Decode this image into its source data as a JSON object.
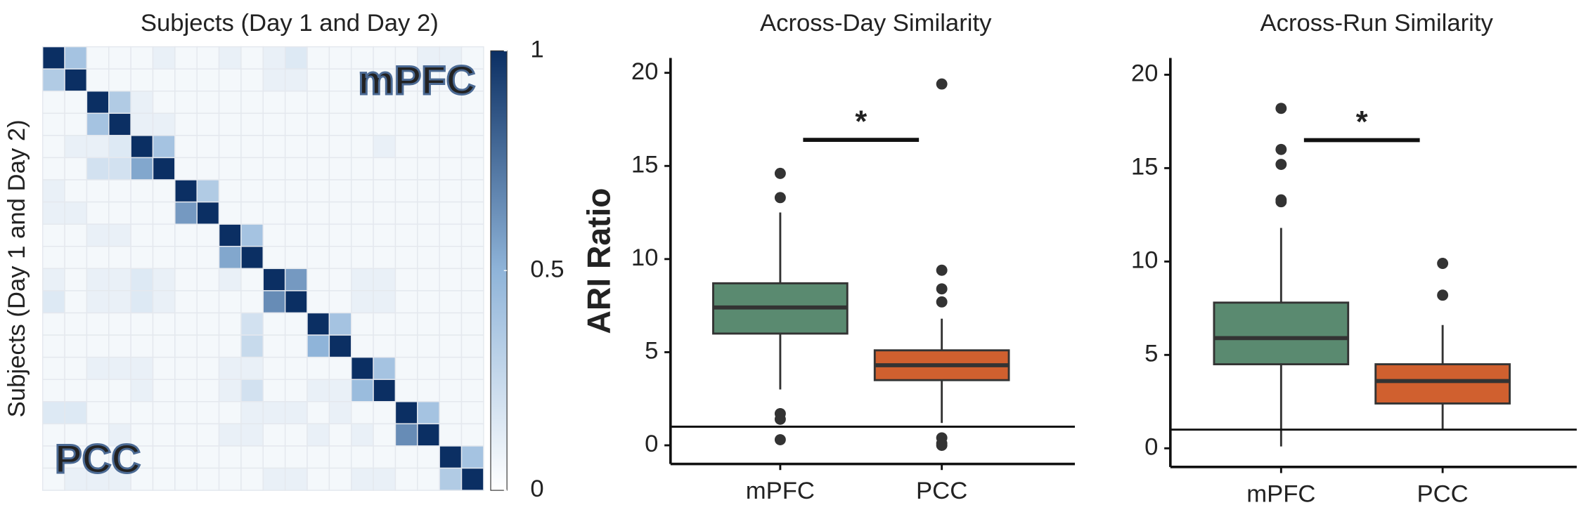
{
  "chart_data": [
    {
      "type": "heatmap",
      "title": "Subjects (Day 1 and Day 2)",
      "ylabel": "Subjects (Day 1 and Day 2)",
      "annotations": [
        "mPFC",
        "PCC"
      ],
      "zlim": [
        0,
        1
      ],
      "zticks": [
        0,
        0.5,
        1
      ],
      "colors": [
        "#ffffff",
        "#8fb4d9",
        "#0b2f63"
      ],
      "values": [
        [
          1,
          0.4,
          0.05,
          0.05,
          0.05,
          0.1,
          0.05,
          0.05,
          0.1,
          0.05,
          0.1,
          0.15,
          0.05,
          0.05,
          0.05,
          0.05,
          0.05,
          0.1,
          0.1,
          0.05
        ],
        [
          0.35,
          1,
          0.05,
          0.05,
          0.05,
          0.05,
          0.05,
          0.05,
          0.05,
          0.05,
          0.1,
          0.1,
          0.05,
          0.05,
          0.05,
          0.05,
          0.05,
          0.05,
          0.05,
          0.05
        ],
        [
          0.05,
          0.05,
          1,
          0.35,
          0.1,
          0.05,
          0.05,
          0.05,
          0.05,
          0.05,
          0.05,
          0.05,
          0.05,
          0.05,
          0.05,
          0.05,
          0.05,
          0.05,
          0.05,
          0.05
        ],
        [
          0.05,
          0.05,
          0.4,
          1,
          0.1,
          0.1,
          0.05,
          0.05,
          0.05,
          0.05,
          0.05,
          0.05,
          0.05,
          0.05,
          0.05,
          0.05,
          0.05,
          0.05,
          0.05,
          0.05
        ],
        [
          0.05,
          0.1,
          0.1,
          0.15,
          1,
          0.4,
          0.05,
          0.05,
          0.05,
          0.05,
          0.05,
          0.05,
          0.05,
          0.05,
          0.05,
          0.1,
          0.05,
          0.05,
          0.05,
          0.05
        ],
        [
          0.05,
          0.05,
          0.2,
          0.2,
          0.55,
          1,
          0.05,
          0.05,
          0.05,
          0.05,
          0.05,
          0.05,
          0.05,
          0.05,
          0.05,
          0.05,
          0.05,
          0.05,
          0.05,
          0.05
        ],
        [
          0.1,
          0.05,
          0.05,
          0.05,
          0.05,
          0.05,
          1,
          0.35,
          0.05,
          0.05,
          0.05,
          0.05,
          0.05,
          0.05,
          0.05,
          0.05,
          0.05,
          0.05,
          0.05,
          0.05
        ],
        [
          0.1,
          0.1,
          0.05,
          0.05,
          0.05,
          0.05,
          0.6,
          1,
          0.05,
          0.05,
          0.05,
          0.05,
          0.05,
          0.05,
          0.05,
          0.05,
          0.05,
          0.05,
          0.05,
          0.05
        ],
        [
          0.05,
          0.05,
          0.1,
          0.1,
          0.05,
          0.05,
          0.05,
          0.05,
          1,
          0.4,
          0.05,
          0.05,
          0.05,
          0.05,
          0.05,
          0.05,
          0.05,
          0.05,
          0.05,
          0.05
        ],
        [
          0.05,
          0.05,
          0.05,
          0.05,
          0.05,
          0.05,
          0.05,
          0.05,
          0.55,
          1,
          0.05,
          0.05,
          0.05,
          0.05,
          0.05,
          0.05,
          0.05,
          0.05,
          0.05,
          0.05
        ],
        [
          0.1,
          0.05,
          0.1,
          0.1,
          0.15,
          0.1,
          0.05,
          0.05,
          0.1,
          0.05,
          1,
          0.6,
          0.05,
          0.05,
          0.1,
          0.1,
          0.05,
          0.05,
          0.05,
          0.05
        ],
        [
          0.15,
          0.05,
          0.1,
          0.1,
          0.15,
          0.1,
          0.05,
          0.05,
          0.05,
          0.05,
          0.65,
          1,
          0.05,
          0.05,
          0.1,
          0.1,
          0.05,
          0.05,
          0.05,
          0.05
        ],
        [
          0.05,
          0.05,
          0.05,
          0.05,
          0.05,
          0.05,
          0.05,
          0.05,
          0.05,
          0.2,
          0.05,
          0.05,
          1,
          0.4,
          0.05,
          0.05,
          0.05,
          0.05,
          0.05,
          0.05
        ],
        [
          0.05,
          0.05,
          0.05,
          0.05,
          0.05,
          0.05,
          0.05,
          0.05,
          0.05,
          0.25,
          0.05,
          0.05,
          0.5,
          1,
          0.05,
          0.05,
          0.05,
          0.05,
          0.05,
          0.05
        ],
        [
          0.05,
          0.05,
          0.1,
          0.1,
          0.1,
          0.05,
          0.05,
          0.05,
          0.1,
          0.1,
          0.05,
          0.05,
          0.05,
          0.05,
          1,
          0.4,
          0.05,
          0.05,
          0.05,
          0.05
        ],
        [
          0.05,
          0.05,
          0.05,
          0.05,
          0.1,
          0.05,
          0.05,
          0.05,
          0.1,
          0.2,
          0.05,
          0.05,
          0.1,
          0.1,
          0.45,
          1,
          0.05,
          0.05,
          0.05,
          0.05
        ],
        [
          0.15,
          0.15,
          0.05,
          0.05,
          0.05,
          0.05,
          0.05,
          0.05,
          0.05,
          0.1,
          0.1,
          0.1,
          0.05,
          0.1,
          0.05,
          0.05,
          1,
          0.4,
          0.05,
          0.05
        ],
        [
          0.05,
          0.05,
          0.05,
          0.1,
          0.05,
          0.05,
          0.05,
          0.05,
          0.1,
          0.1,
          0.05,
          0.05,
          0.1,
          0.05,
          0.1,
          0.05,
          0.65,
          1,
          0.05,
          0.05
        ],
        [
          0.05,
          0.05,
          0.05,
          0.05,
          0.05,
          0.05,
          0.05,
          0.05,
          0.05,
          0.05,
          0.05,
          0.05,
          0.05,
          0.05,
          0.05,
          0.05,
          0.05,
          0.05,
          1,
          0.4
        ],
        [
          0.05,
          0.1,
          0.1,
          0.1,
          0.05,
          0.05,
          0.05,
          0.05,
          0.05,
          0.05,
          0.1,
          0.1,
          0.05,
          0.05,
          0.1,
          0.1,
          0.05,
          0.05,
          0.35,
          1
        ]
      ]
    },
    {
      "type": "box",
      "title": "Across-Day Similarity",
      "ylabel": "ARI Ratio",
      "categories": [
        "mPFC",
        "PCC"
      ],
      "ylim": [
        -1,
        20.8
      ],
      "yticks": [
        0,
        5,
        10,
        15,
        20
      ],
      "hline": 1,
      "significance": {
        "label": "*",
        "y": 16.4
      },
      "boxes": [
        {
          "color": "#5a8a70",
          "whisker_low": 3.0,
          "q1": 6.0,
          "median": 7.4,
          "q3": 8.7,
          "whisker_high": 12.5,
          "outliers": [
            14.6,
            13.3,
            1.7,
            1.4,
            0.3
          ]
        },
        {
          "color": "#d0602f",
          "whisker_low": 1.2,
          "q1": 3.5,
          "median": 4.3,
          "q3": 5.1,
          "whisker_high": 6.8,
          "outliers": [
            19.4,
            9.4,
            8.4,
            7.7,
            0.4,
            0.1,
            0
          ]
        }
      ]
    },
    {
      "type": "box",
      "title": "Across-Run Similarity",
      "categories": [
        "mPFC",
        "PCC"
      ],
      "ylim": [
        -1,
        20.9
      ],
      "yticks": [
        0,
        5,
        10,
        15,
        20
      ],
      "hline": 1,
      "significance": {
        "label": "*",
        "y": 16.5
      },
      "boxes": [
        {
          "color": "#5a8a70",
          "whisker_low": 0.1,
          "q1": 4.5,
          "median": 5.9,
          "q3": 7.8,
          "whisker_high": 11.8,
          "outliers": [
            18.2,
            16.0,
            15.2,
            13.3,
            13.2
          ]
        },
        {
          "color": "#d0602f",
          "whisker_low": 1.0,
          "q1": 2.4,
          "median": 3.6,
          "q3": 4.5,
          "whisker_high": 6.6,
          "outliers": [
            9.9,
            8.2
          ]
        }
      ]
    }
  ]
}
